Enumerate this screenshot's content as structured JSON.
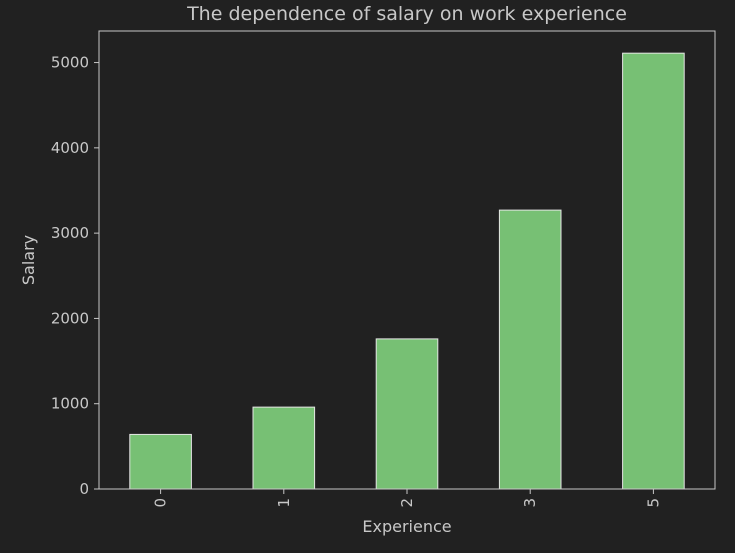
{
  "chart_data": {
    "type": "bar",
    "title": "The dependence of salary on work experience",
    "xlabel": "Experience",
    "ylabel": "Salary",
    "categories": [
      "0",
      "1",
      "2",
      "3",
      "5"
    ],
    "values": [
      640,
      960,
      1760,
      3270,
      5110
    ],
    "ylim": [
      0,
      5370
    ],
    "yticks": [
      0,
      1000,
      2000,
      3000,
      4000,
      5000
    ],
    "grid": false,
    "legend": "none",
    "colors": {
      "background": "#212121",
      "bar": "#77c074",
      "bar_edge": "#e6e6e6",
      "text": "#c8c8c8"
    }
  }
}
